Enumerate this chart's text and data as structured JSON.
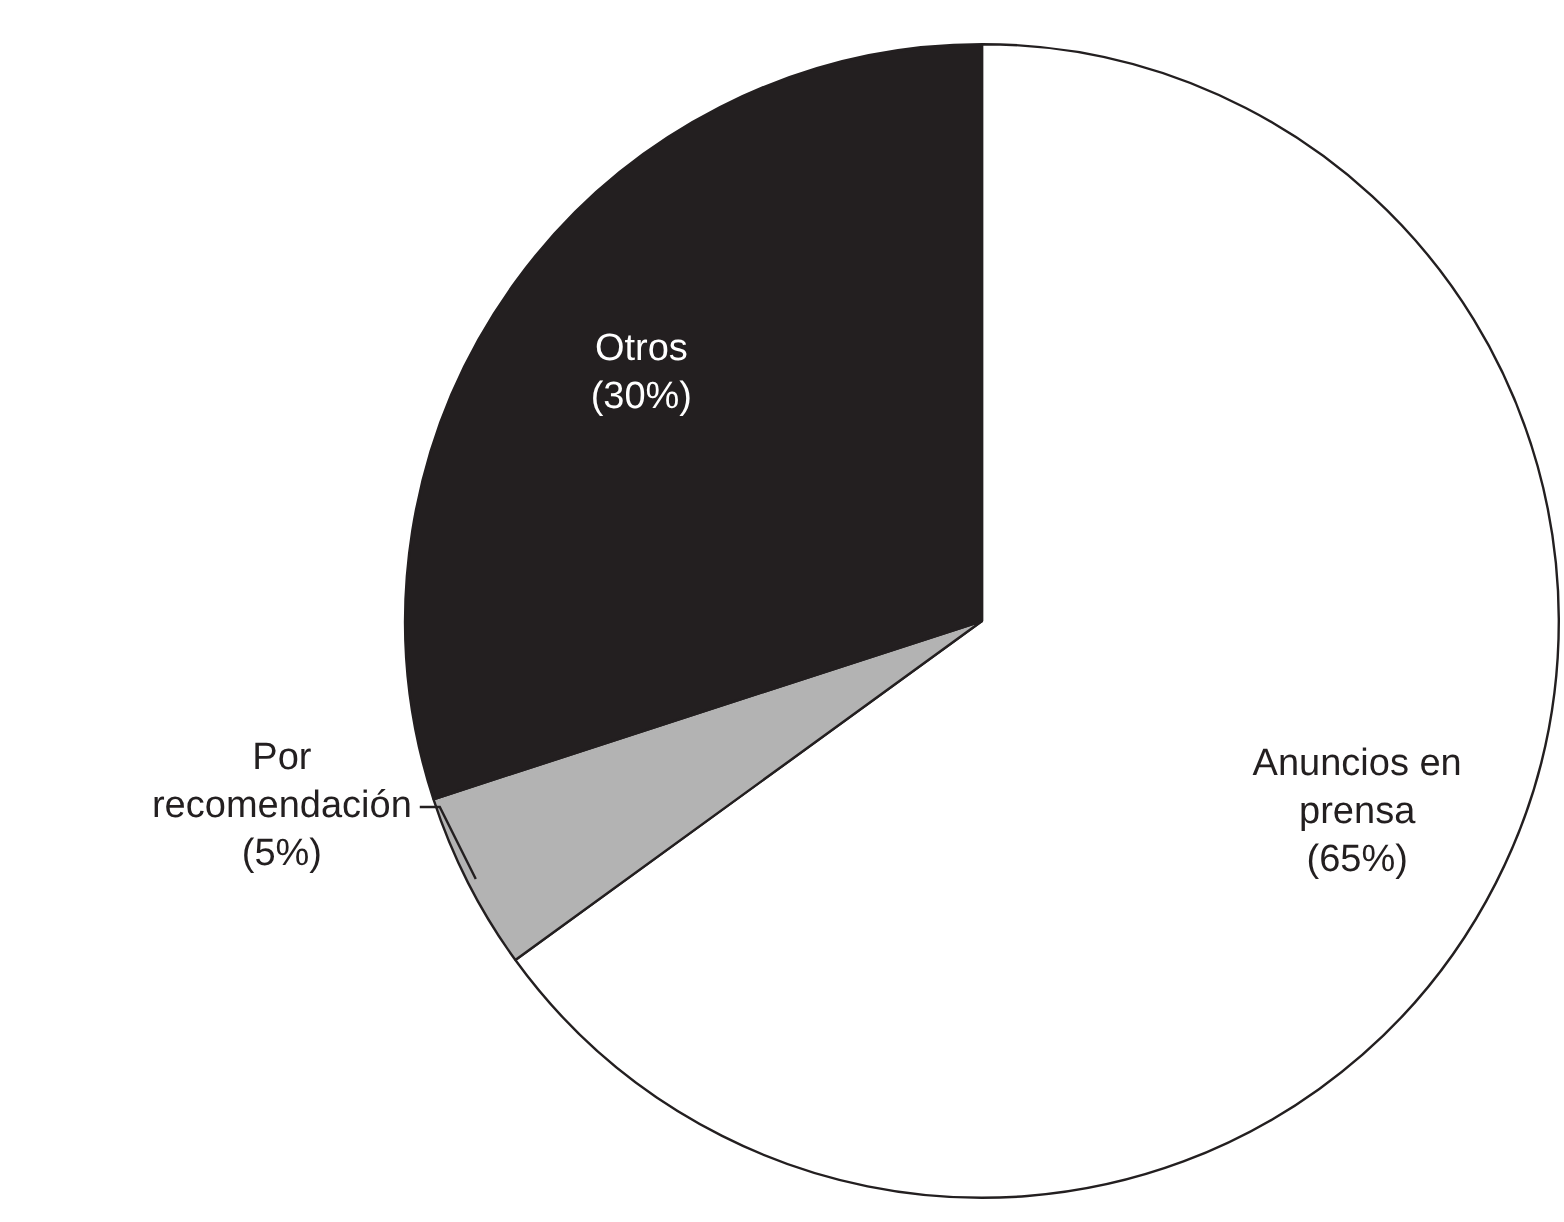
{
  "chart_data": {
    "type": "pie",
    "categories": [
      "Anuncios en prensa",
      "Por recomendación",
      "Otros"
    ],
    "values": [
      65,
      5,
      30
    ],
    "colors": [
      "#ffffff",
      "#b3b3b3",
      "#231f20"
    ],
    "value_labels": [
      "(65%)",
      "(5%)",
      "(30%)"
    ],
    "legend": false
  }
}
